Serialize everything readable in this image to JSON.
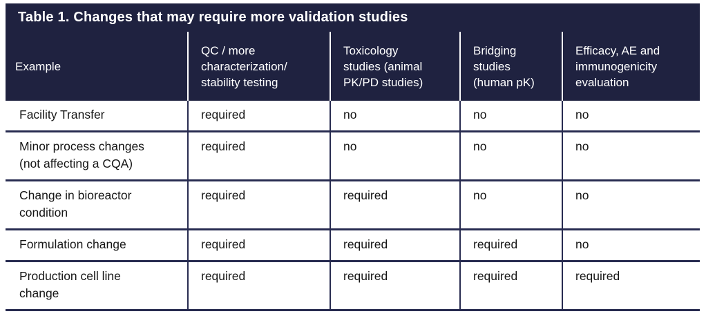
{
  "colors": {
    "header_bg": "#1f2240",
    "grid_line": "#272b50",
    "header_text": "#ffffff",
    "body_text": "#161616",
    "page_bg": "#ffffff"
  },
  "table": {
    "title": "Table 1. Changes that may require more validation studies",
    "columns": [
      "Example",
      "QC / more\ncharacterization/\nstability testing",
      "Toxicology\nstudies (animal\nPK/PD studies)",
      "Bridging\nstudies\n(human pK)",
      "Efficacy, AE and\nimmunogenicity\nevaluation"
    ],
    "rows": [
      {
        "cells": [
          "Facility Transfer",
          "required",
          "no",
          "no",
          "no"
        ]
      },
      {
        "cells": [
          "Minor process changes\n(not affecting a CQA)",
          "required",
          "no",
          "no",
          "no"
        ]
      },
      {
        "cells": [
          "Change in bioreactor\ncondition",
          "required",
          "required",
          "no",
          "no"
        ]
      },
      {
        "cells": [
          "Formulation change",
          "required",
          "required",
          "required",
          "no"
        ]
      },
      {
        "cells": [
          "Production cell line\nchange",
          "required",
          "required",
          "required",
          "required"
        ]
      }
    ]
  },
  "chart_data": {
    "type": "table",
    "title": "Table 1. Changes that may require more validation studies",
    "columns": [
      "Example",
      "QC / more characterization/ stability testing",
      "Toxicology studies (animal PK/PD studies)",
      "Bridging studies (human pK)",
      "Efficacy, AE and immunogenicity evaluation"
    ],
    "rows": [
      [
        "Facility Transfer",
        "required",
        "no",
        "no",
        "no"
      ],
      [
        "Minor process changes (not affecting a CQA)",
        "required",
        "no",
        "no",
        "no"
      ],
      [
        "Change in bioreactor condition",
        "required",
        "required",
        "no",
        "no"
      ],
      [
        "Formulation change",
        "required",
        "required",
        "required",
        "no"
      ],
      [
        "Production cell line change",
        "required",
        "required",
        "required",
        "required"
      ]
    ]
  }
}
